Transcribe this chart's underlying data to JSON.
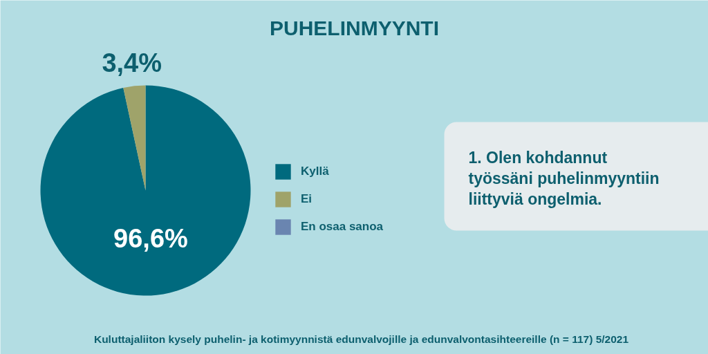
{
  "chart_data": {
    "type": "pie",
    "title": "PUHELINMYYNTI",
    "categories": [
      "Kyllä",
      "Ei",
      "En osaa sanoa"
    ],
    "values": [
      96.6,
      3.4,
      0
    ],
    "colors": [
      "#006a7e",
      "#9fa36a",
      "#6a85b0"
    ],
    "value_labels": [
      "96,6%",
      "3,4%",
      null
    ],
    "legend": "right",
    "annotations": [
      "1. Olen kohdannut työssäni puhelinmyyntiin liittyviä ongelmia.",
      "Kuluttajaliiton kysely puhelin- ja kotimyynnistä edunvalvojille ja edunvalvontasihteereille (n = 117) 5/2021"
    ]
  }
}
